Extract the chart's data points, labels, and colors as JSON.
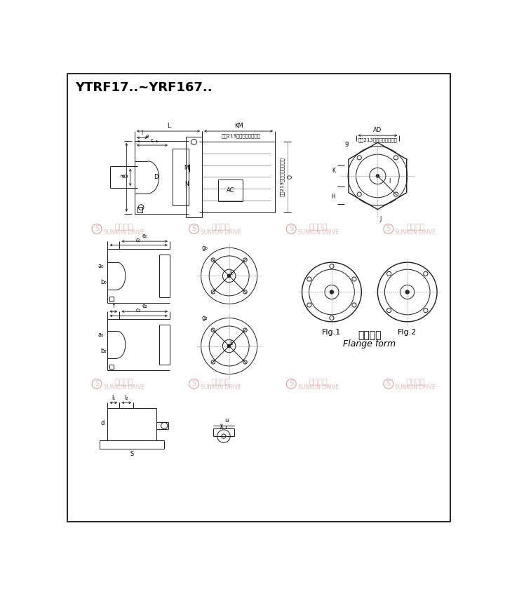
{
  "title": "YTRF17..~YRF167..",
  "note_text": "见第213页附录电机尺圠表",
  "fig1_label": "Flg.1",
  "fig2_label": "Flg.2",
  "flange_cn": "法兰型式",
  "flange_en": "Flange form",
  "bg_color": "#ffffff",
  "border_color": "#000000",
  "drawing_color": "#1a1a1a",
  "wm_color": "#d4a0a0",
  "wm_blue": "#a0a8d0"
}
